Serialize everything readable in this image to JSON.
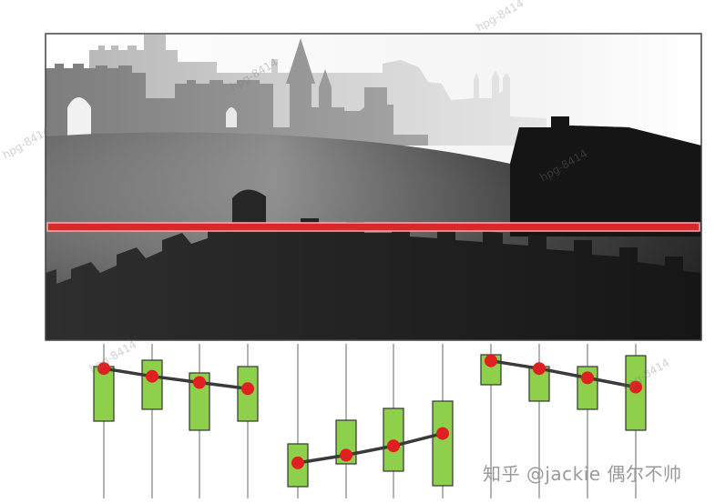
{
  "credit": "知乎 @jackie 偶尔不帅",
  "watermarks": [
    "hpg-8414",
    "hpg-8414",
    "hpg-8414",
    "hpg-8414",
    "hpg-8414",
    "hpg-8414"
  ],
  "colors": {
    "scan_line": "#d42a2a",
    "column": "#8ed04c",
    "column_border": "#333333",
    "dot": "#e02020",
    "connector": "#3a3a3a",
    "rail": "#9a9a9a"
  },
  "diagram": {
    "image_description_role": "depth-map",
    "columns": [
      {
        "group": 1,
        "dot_level": 0.16
      },
      {
        "group": 1,
        "dot_level": 0.21
      },
      {
        "group": 1,
        "dot_level": 0.25
      },
      {
        "group": 1,
        "dot_level": 0.29
      },
      {
        "group": 2,
        "dot_level": 0.77
      },
      {
        "group": 2,
        "dot_level": 0.72
      },
      {
        "group": 2,
        "dot_level": 0.66
      },
      {
        "group": 2,
        "dot_level": 0.58
      },
      {
        "group": 3,
        "dot_level": 0.11
      },
      {
        "group": 3,
        "dot_level": 0.16
      },
      {
        "group": 3,
        "dot_level": 0.22
      },
      {
        "group": 3,
        "dot_level": 0.28
      }
    ]
  }
}
